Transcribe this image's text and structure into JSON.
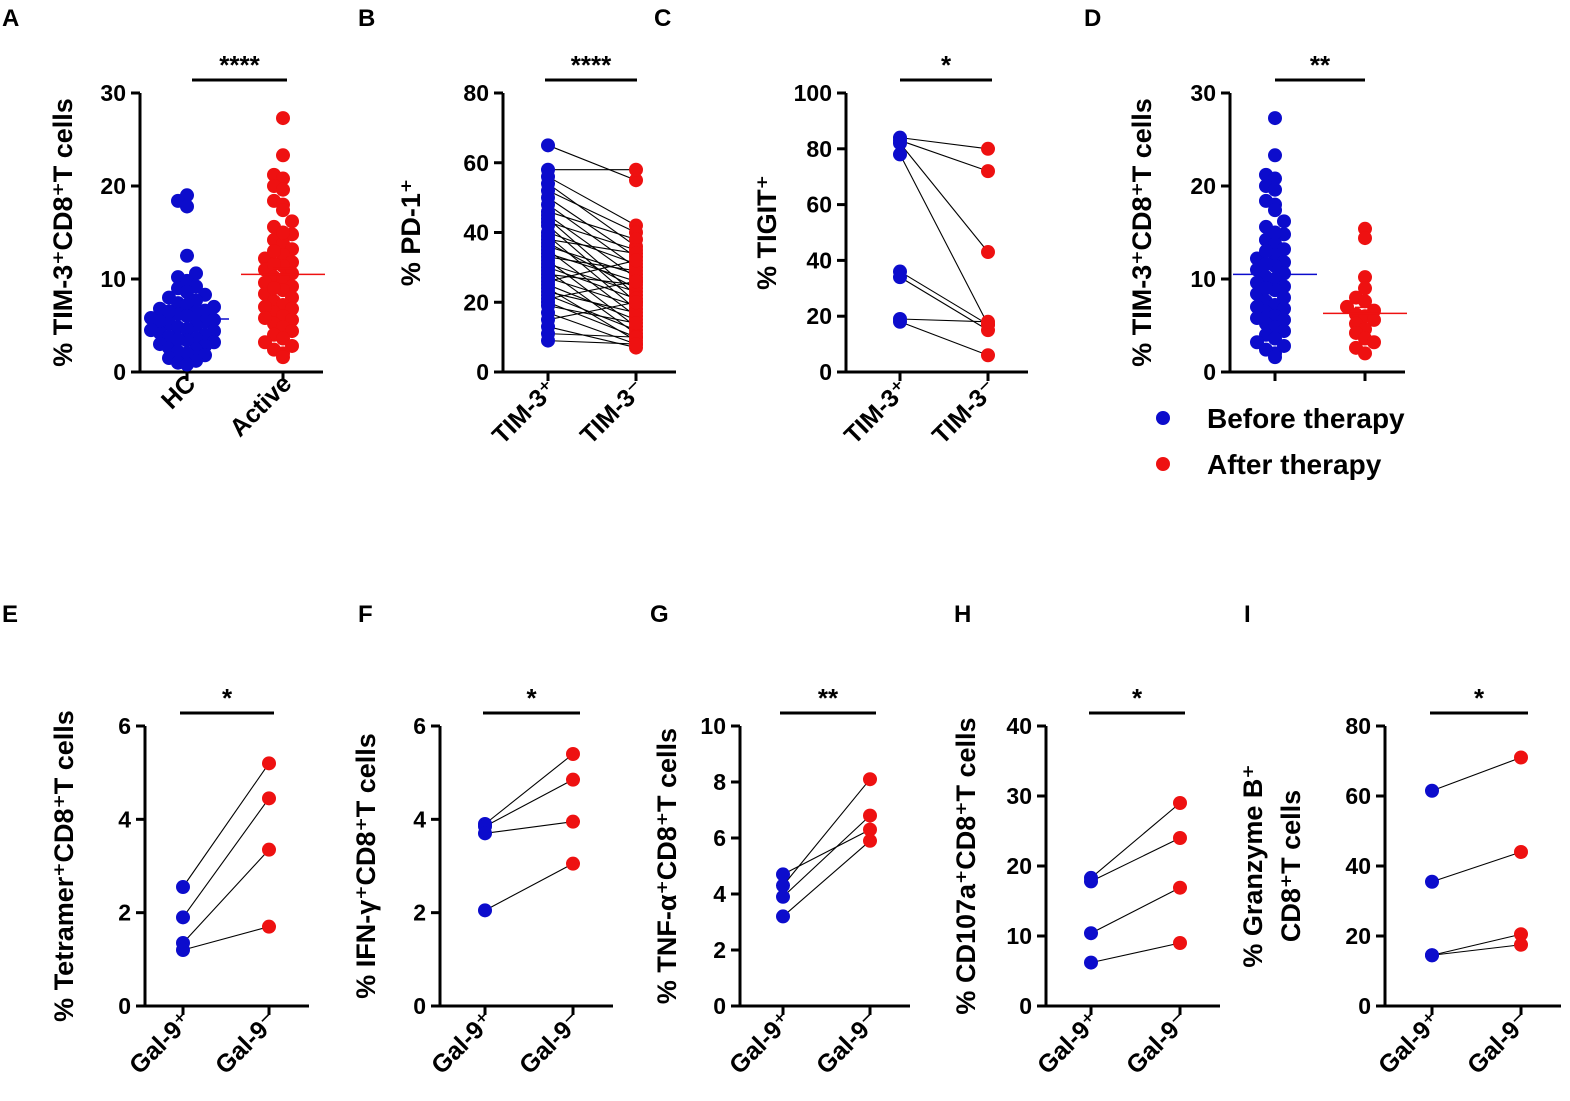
{
  "colors": {
    "blue": "#0c0ccc",
    "red": "#ee1111",
    "black": "#000000"
  },
  "legend": {
    "before": "Before therapy",
    "after": "After therapy"
  },
  "chart_data": [
    {
      "id": "A",
      "panel": "A",
      "type": "scatter",
      "ylabel": "% TIM-3⁺CD8⁺T cells",
      "ylim": [
        0,
        30
      ],
      "ticks": [
        0,
        10,
        20,
        30
      ],
      "categories": [
        "HC",
        "Active"
      ],
      "significance": "****",
      "series": [
        {
          "name": "HC",
          "color": "blue",
          "mean": 5.7,
          "values": [
            19,
            18.4,
            17.8,
            12.5,
            10.6,
            10.2,
            9.8,
            9.2,
            9.0,
            8.6,
            8.3,
            8.0,
            7.7,
            7.4,
            7.2,
            7.0,
            6.8,
            6.6,
            6.4,
            6.2,
            6.0,
            5.8,
            5.6,
            5.4,
            5.2,
            5.0,
            4.8,
            4.6,
            4.4,
            4.2,
            4.0,
            3.8,
            3.6,
            3.4,
            3.2,
            3.0,
            2.8,
            2.6,
            2.4,
            2.2,
            2.0,
            1.8,
            1.5,
            1.2,
            1.0,
            0.8,
            5.5,
            4.5,
            3.5,
            6.5
          ]
        },
        {
          "name": "Active",
          "color": "red",
          "mean": 10.5,
          "values": [
            27.3,
            23.3,
            21.2,
            20.8,
            20.0,
            19.6,
            18.4,
            18.0,
            17.4,
            16.2,
            15.6,
            14.8,
            14.2,
            13.8,
            13.2,
            12.6,
            12.2,
            11.8,
            11.4,
            11.0,
            10.6,
            10.2,
            10.0,
            9.6,
            9.2,
            8.8,
            8.4,
            8.0,
            7.6,
            7.2,
            6.8,
            6.4,
            6.0,
            5.6,
            5.2,
            4.8,
            4.4,
            4.0,
            3.6,
            3.2,
            2.8,
            2.4,
            2.0,
            1.6,
            9.0,
            11.6,
            15.0,
            7.0,
            5.8,
            13.0
          ]
        }
      ]
    },
    {
      "id": "B",
      "panel": "B",
      "type": "paired",
      "ylabel": "% PD-1⁺",
      "ylim": [
        0,
        80
      ],
      "ticks": [
        0,
        20,
        40,
        60,
        80
      ],
      "categories": [
        "TIM-3⁺",
        "TIM-3⁻"
      ],
      "significance": "****",
      "pairs": [
        [
          65,
          55
        ],
        [
          58,
          58
        ],
        [
          56,
          42
        ],
        [
          54,
          36
        ],
        [
          52,
          40
        ],
        [
          50,
          33
        ],
        [
          48,
          30
        ],
        [
          46,
          38
        ],
        [
          45,
          27
        ],
        [
          44,
          22
        ],
        [
          43,
          35
        ],
        [
          42,
          20
        ],
        [
          40,
          31
        ],
        [
          39,
          18
        ],
        [
          38,
          34
        ],
        [
          37,
          24
        ],
        [
          36,
          28
        ],
        [
          35,
          16
        ],
        [
          34,
          26
        ],
        [
          33,
          29
        ],
        [
          32,
          13
        ],
        [
          31,
          23
        ],
        [
          30,
          21
        ],
        [
          29,
          11
        ],
        [
          28,
          25
        ],
        [
          27,
          19
        ],
        [
          26,
          32
        ],
        [
          25,
          15
        ],
        [
          24,
          9
        ],
        [
          23,
          17
        ],
        [
          22,
          12
        ],
        [
          21,
          26
        ],
        [
          20,
          10
        ],
        [
          19,
          14
        ],
        [
          17,
          8
        ],
        [
          15,
          20
        ],
        [
          13,
          7
        ],
        [
          11,
          10
        ],
        [
          9,
          8
        ]
      ]
    },
    {
      "id": "C",
      "panel": "C",
      "type": "paired",
      "ylabel": "% TIGIT⁺",
      "ylim": [
        0,
        100
      ],
      "ticks": [
        0,
        20,
        40,
        60,
        80,
        100
      ],
      "categories": [
        "TIM-3⁺",
        "TIM-3⁻"
      ],
      "significance": "*",
      "pairs": [
        [
          84,
          80
        ],
        [
          83,
          72
        ],
        [
          82,
          43
        ],
        [
          78,
          17
        ],
        [
          36,
          17
        ],
        [
          34,
          15
        ],
        [
          19,
          18
        ],
        [
          18,
          6
        ]
      ]
    },
    {
      "id": "D",
      "panel": "D",
      "type": "scatter",
      "ylabel": "% TIM-3⁺CD8⁺T cells",
      "ylim": [
        0,
        30
      ],
      "ticks": [
        0,
        10,
        20,
        30
      ],
      "categories": [
        "",
        ""
      ],
      "significance": "**",
      "series": [
        {
          "name": "Before therapy",
          "color": "blue",
          "mean": 10.5,
          "values": [
            27.3,
            23.3,
            21.2,
            20.8,
            20.0,
            19.6,
            18.4,
            18.0,
            17.4,
            16.2,
            15.6,
            14.8,
            14.2,
            13.8,
            13.2,
            12.6,
            12.2,
            11.8,
            11.4,
            11.0,
            10.6,
            10.2,
            10.0,
            9.6,
            9.2,
            8.8,
            8.4,
            8.0,
            7.6,
            7.2,
            6.8,
            6.4,
            6.0,
            5.6,
            5.2,
            4.8,
            4.4,
            4.0,
            3.6,
            3.2,
            2.8,
            2.4,
            2.0,
            1.6,
            9.0,
            11.6,
            15.0,
            7.0,
            5.8,
            13.0
          ]
        },
        {
          "name": "After therapy",
          "color": "red",
          "mean": 6.3,
          "values": [
            15.4,
            14.4,
            10.2,
            9.0,
            8.0,
            7.6,
            7.0,
            6.6,
            6.2,
            6.0,
            5.6,
            5.2,
            4.6,
            4.2,
            3.6,
            3.2,
            2.6,
            2.0
          ]
        }
      ]
    },
    {
      "id": "E",
      "panel": "E",
      "type": "paired",
      "ylabel": "% Tetramer⁺CD8⁺T cells",
      "ylim": [
        0,
        6
      ],
      "ticks": [
        0,
        2,
        4,
        6
      ],
      "categories": [
        "Gal-9⁺",
        "Gal-9⁻"
      ],
      "significance": "*",
      "pairs": [
        [
          2.55,
          5.2
        ],
        [
          1.9,
          4.45
        ],
        [
          1.35,
          3.35
        ],
        [
          1.2,
          1.7
        ]
      ]
    },
    {
      "id": "F",
      "panel": "F",
      "type": "paired",
      "ylabel": "% IFN-γ⁺CD8⁺T cells",
      "ylim": [
        0,
        6
      ],
      "ticks": [
        0,
        2,
        4,
        6
      ],
      "categories": [
        "Gal-9⁺",
        "Gal-9⁻"
      ],
      "significance": "*",
      "pairs": [
        [
          3.9,
          5.4
        ],
        [
          3.85,
          4.85
        ],
        [
          3.7,
          3.95
        ],
        [
          2.05,
          3.05
        ]
      ]
    },
    {
      "id": "G",
      "panel": "G",
      "type": "paired",
      "ylabel": "% TNF-α⁺CD8⁺T cells",
      "ylim": [
        0,
        10
      ],
      "ticks": [
        0,
        2,
        4,
        6,
        8,
        10
      ],
      "categories": [
        "Gal-9⁺",
        "Gal-9⁻"
      ],
      "significance": "**",
      "pairs": [
        [
          4.7,
          6.3
        ],
        [
          4.3,
          8.1
        ],
        [
          3.9,
          6.8
        ],
        [
          3.2,
          5.9
        ]
      ]
    },
    {
      "id": "H",
      "panel": "H",
      "type": "paired",
      "ylabel": "% CD107a⁺CD8⁺T cells",
      "ylim": [
        0,
        40
      ],
      "ticks": [
        0,
        10,
        20,
        30,
        40
      ],
      "categories": [
        "Gal-9⁺",
        "Gal-9⁻"
      ],
      "significance": "*",
      "pairs": [
        [
          18.3,
          29
        ],
        [
          17.8,
          24
        ],
        [
          10.4,
          16.9
        ],
        [
          6.2,
          9
        ]
      ]
    },
    {
      "id": "I",
      "panel": "I",
      "type": "paired",
      "ylabel": "% Granzyme B⁺",
      "ylabel2": "CD8⁺T cells",
      "ylim": [
        0,
        80
      ],
      "ticks": [
        0,
        20,
        40,
        60,
        80
      ],
      "categories": [
        "Gal-9⁺",
        "Gal-9⁻"
      ],
      "significance": "*",
      "pairs": [
        [
          61.5,
          71
        ],
        [
          35.5,
          44
        ],
        [
          14.5,
          20.5
        ],
        [
          14.5,
          17.5
        ]
      ]
    }
  ]
}
